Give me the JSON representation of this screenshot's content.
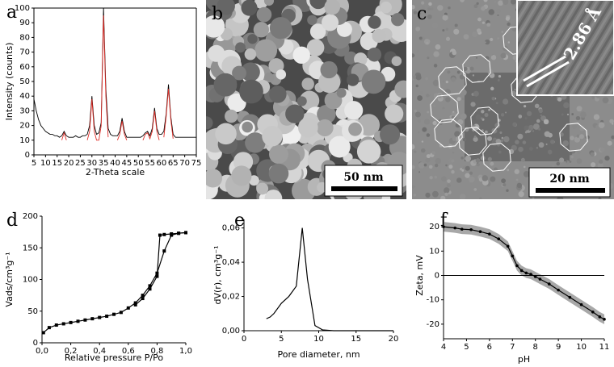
{
  "chart_data": [
    {
      "type": "line",
      "panel": "a",
      "x_label": "2-Theta scale",
      "y_label": "Intensity (counts)",
      "frame": true,
      "x": [
        5,
        6,
        7,
        8,
        9,
        10,
        11,
        12,
        13,
        14,
        15,
        16,
        17,
        18,
        19,
        20,
        21,
        22,
        23,
        24,
        25,
        26,
        27,
        28,
        29,
        30,
        31,
        32,
        33,
        34,
        35,
        36,
        37,
        38,
        39,
        40,
        41,
        42,
        43,
        44,
        45,
        46,
        47,
        48,
        49,
        50,
        51,
        52,
        53,
        54,
        55,
        56,
        57,
        58,
        59,
        60,
        61,
        62,
        63,
        64,
        65,
        66,
        67,
        68,
        69,
        70,
        71,
        72,
        73,
        74,
        75
      ],
      "series": [
        {
          "color": "#000000",
          "values": [
            38,
            30,
            24,
            20,
            18,
            16,
            15,
            14,
            14,
            13,
            13,
            12,
            13,
            16,
            13,
            12,
            12,
            12,
            13,
            12,
            12,
            13,
            13,
            14,
            20,
            40,
            20,
            14,
            15,
            22,
            100,
            45,
            18,
            14,
            13,
            13,
            13,
            16,
            25,
            16,
            12,
            12,
            12,
            12,
            12,
            12,
            12,
            13,
            15,
            16,
            13,
            18,
            32,
            18,
            14,
            14,
            16,
            28,
            48,
            26,
            14,
            12,
            12,
            12,
            12,
            12,
            12,
            12,
            12,
            12,
            12
          ]
        },
        {
          "color": "#e0302a",
          "values": [
            null,
            null,
            null,
            null,
            null,
            null,
            null,
            null,
            null,
            null,
            null,
            null,
            10,
            15,
            10,
            null,
            null,
            null,
            null,
            null,
            null,
            null,
            null,
            10,
            16,
            38,
            16,
            10,
            10,
            20,
            95,
            40,
            12,
            null,
            null,
            null,
            10,
            14,
            23,
            14,
            10,
            null,
            null,
            null,
            null,
            null,
            null,
            10,
            14,
            15,
            11,
            16,
            30,
            16,
            10,
            null,
            12,
            26,
            45,
            24,
            11,
            null,
            null,
            null,
            null,
            null,
            null,
            null,
            null,
            null,
            null
          ]
        }
      ],
      "xlim": [
        5,
        75
      ],
      "xticks": [
        5,
        10,
        15,
        20,
        25,
        30,
        35,
        40,
        45,
        50,
        55,
        60,
        65,
        70,
        75
      ],
      "ylim": [
        0,
        100
      ],
      "yticks": [
        0,
        10,
        20,
        30,
        40,
        50,
        60,
        70,
        80,
        90,
        100
      ]
    },
    {
      "type": "line",
      "panel": "d",
      "x_label": "Relative pressure P/Po",
      "y_label": "Vads/cm³g⁻¹",
      "markers": "square",
      "series": [
        {
          "color": "#000000",
          "x": [
            0.01,
            0.05,
            0.1,
            0.15,
            0.2,
            0.25,
            0.3,
            0.35,
            0.4,
            0.45,
            0.5,
            0.55,
            0.6,
            0.65,
            0.7,
            0.75,
            0.8,
            0.85,
            0.9,
            0.95,
            1.0
          ],
          "values": [
            16,
            24,
            28,
            30,
            32,
            34,
            36,
            38,
            40,
            42,
            45,
            48,
            55,
            63,
            75,
            90,
            110,
            145,
            170,
            173,
            174
          ]
        },
        {
          "color": "#000000",
          "x": [
            1.0,
            0.95,
            0.9,
            0.85,
            0.82,
            0.8,
            0.75,
            0.7,
            0.65
          ],
          "values": [
            174,
            173,
            172,
            171,
            170,
            105,
            85,
            70,
            60
          ]
        }
      ],
      "xlim": [
        0,
        1.0
      ],
      "xticks": [
        {
          "value": 0,
          "label": "0,0"
        },
        {
          "value": 0.2,
          "label": "0,2"
        },
        {
          "value": 0.4,
          "label": "0,4"
        },
        {
          "value": 0.6,
          "label": "0,6"
        },
        {
          "value": 0.8,
          "label": "0,8"
        },
        {
          "value": 1.0,
          "label": "1,0"
        }
      ],
      "ylim": [
        0,
        200
      ],
      "yticks": [
        0,
        50,
        100,
        150,
        200
      ]
    },
    {
      "type": "line",
      "panel": "e",
      "x_label": "Pore diameter, nm",
      "y_label": "dV(r), cm³g⁻¹",
      "series": [
        {
          "color": "#000000",
          "x": [
            3,
            3.5,
            4,
            5,
            6,
            7,
            7.8,
            8.5,
            9.5,
            10.5,
            12,
            15,
            20
          ],
          "values": [
            0.007,
            0.008,
            0.01,
            0.016,
            0.02,
            0.026,
            0.06,
            0.03,
            0.003,
            0.0005,
            0,
            0,
            0
          ]
        }
      ],
      "xlim": [
        0,
        20
      ],
      "xticks": [
        0,
        5,
        10,
        15,
        20
      ],
      "ylim": [
        0,
        0.065
      ],
      "yticks": [
        {
          "value": 0,
          "label": "0,00"
        },
        {
          "value": 0.02,
          "label": "0,02"
        },
        {
          "value": 0.04,
          "label": "0,04"
        },
        {
          "value": 0.06,
          "label": "0,06"
        }
      ]
    },
    {
      "type": "line",
      "panel": "f",
      "x_label": "pH",
      "y_label": "Zeta, mV",
      "markers": "circle",
      "zero_line": true,
      "error": 2,
      "band_color": "#a8a8a8",
      "series": [
        {
          "color": "#000000",
          "x": [
            4,
            4.5,
            4.8,
            5.2,
            5.6,
            6,
            6.4,
            6.8,
            7,
            7.2,
            7.4,
            7.6,
            7.8,
            8,
            8.2,
            8.6,
            9,
            9.5,
            10,
            10.5,
            10.8,
            11
          ],
          "values": [
            20,
            19.5,
            19,
            18.8,
            18,
            17,
            15,
            12,
            8,
            4,
            2,
            1,
            0.5,
            -0.5,
            -1.5,
            -3.5,
            -6,
            -9,
            -12,
            -15,
            -17,
            -18
          ]
        }
      ],
      "xlim": [
        4,
        11
      ],
      "xticks": [
        4,
        5,
        6,
        7,
        8,
        9,
        10,
        11
      ],
      "ylim": [
        -26,
        26
      ],
      "yticks": [
        -20,
        -10,
        0,
        10,
        20
      ]
    }
  ],
  "images": [
    {
      "label": "b",
      "scale_bar": "50 nm"
    },
    {
      "label": "c",
      "scale_bar": "20 nm",
      "inset_text": "2.86 Å"
    }
  ]
}
